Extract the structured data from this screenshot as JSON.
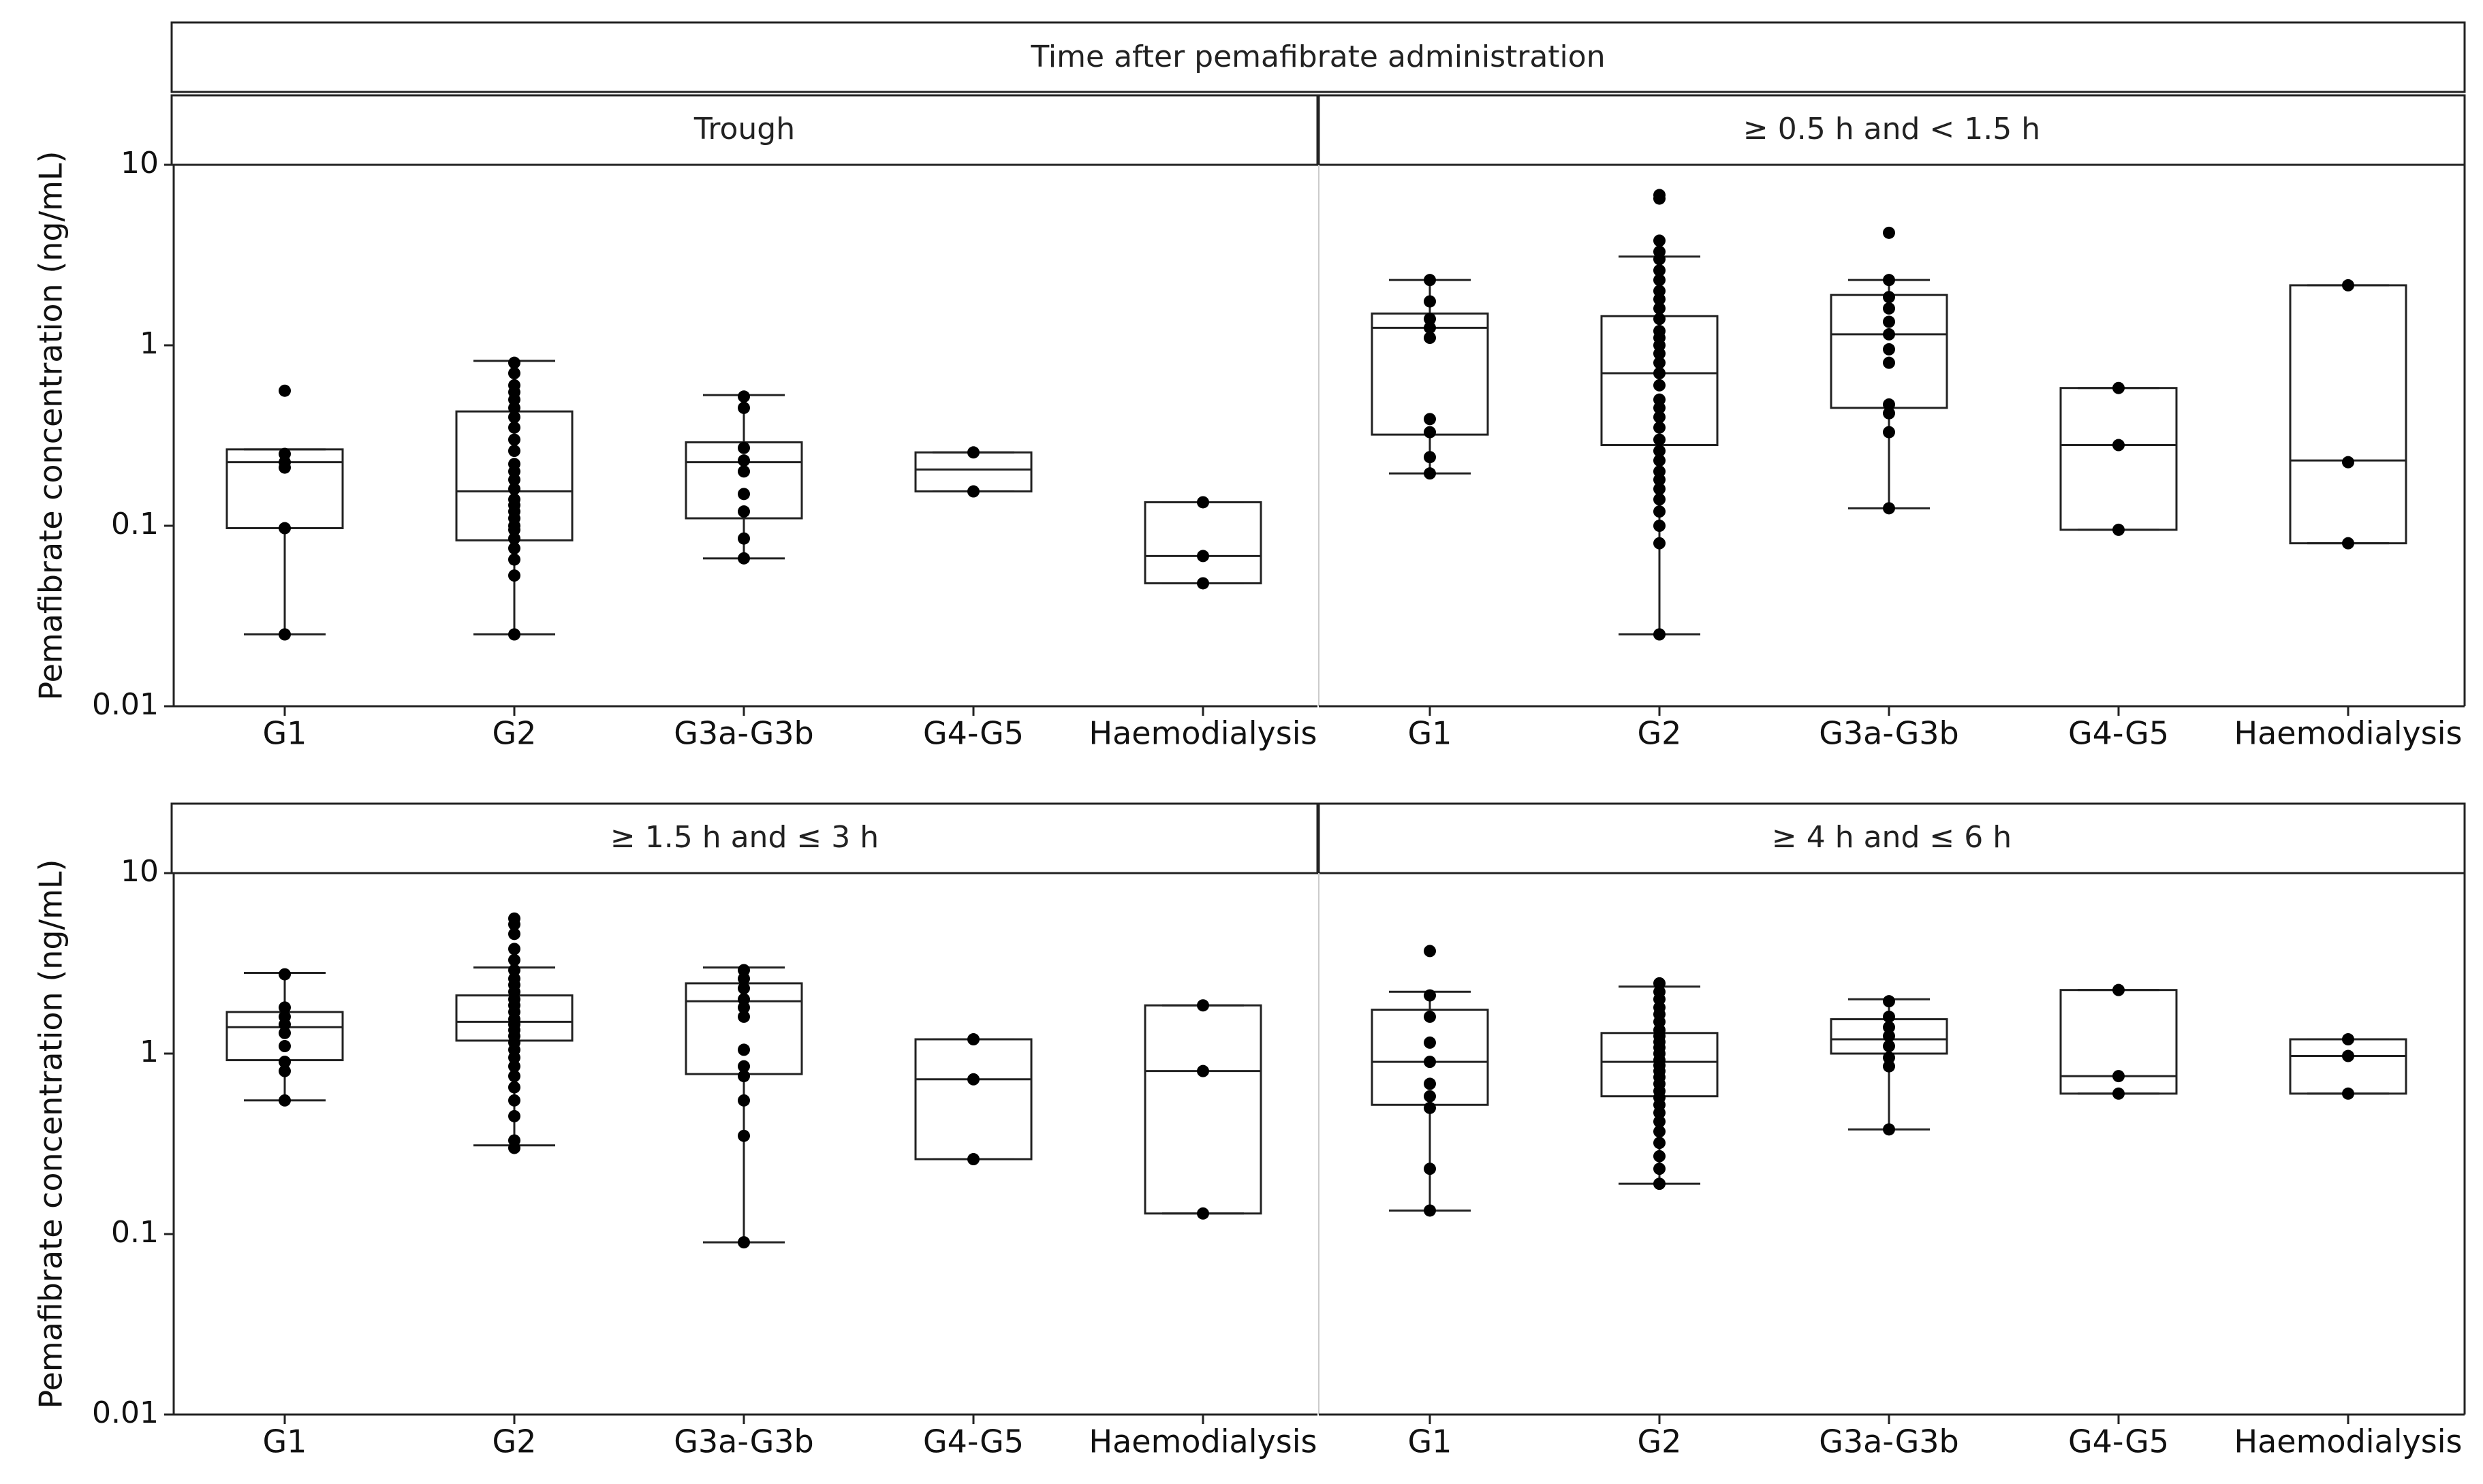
{
  "chart_data": {
    "type": "boxplot",
    "title": "Time after pemafibrate administration",
    "ylabel": "Pemafibrate concentration (ng/mL)",
    "yscale": "log",
    "ylim": [
      0.01,
      10
    ],
    "yticks": [
      {
        "value": 10,
        "label": "10"
      },
      {
        "value": 1,
        "label": "1"
      },
      {
        "value": 0.1,
        "label": "0.1"
      },
      {
        "value": 0.01,
        "label": "0.01"
      }
    ],
    "categories": [
      "G1",
      "G2",
      "G3a-G3b",
      "G4-G5",
      "Haemodialysis"
    ],
    "panels": [
      {
        "label": "Trough",
        "groups": [
          {
            "category": "G1",
            "whisker_low": 0.025,
            "q1": 0.097,
            "median": 0.225,
            "q3": 0.265,
            "whisker_high": 0.265,
            "points": [
              0.025,
              0.097,
              0.21,
              0.225,
              0.25,
              0.56
            ]
          },
          {
            "category": "G2",
            "whisker_low": 0.025,
            "q1": 0.083,
            "median": 0.155,
            "q3": 0.43,
            "whisker_high": 0.82,
            "points": [
              0.025,
              0.053,
              0.065,
              0.075,
              0.085,
              0.095,
              0.1,
              0.11,
              0.12,
              0.13,
              0.14,
              0.16,
              0.18,
              0.2,
              0.22,
              0.26,
              0.3,
              0.35,
              0.4,
              0.45,
              0.5,
              0.55,
              0.6,
              0.7,
              0.8
            ]
          },
          {
            "category": "G3a-G3b",
            "whisker_low": 0.066,
            "q1": 0.11,
            "median": 0.225,
            "q3": 0.29,
            "whisker_high": 0.53,
            "points": [
              0.066,
              0.085,
              0.12,
              0.15,
              0.2,
              0.23,
              0.27,
              0.45,
              0.52
            ]
          },
          {
            "category": "G4-G5",
            "whisker_low": 0.155,
            "q1": 0.155,
            "median": 0.205,
            "q3": 0.255,
            "whisker_high": 0.255,
            "points": [
              0.155,
              0.255
            ]
          },
          {
            "category": "Haemodialysis",
            "whisker_low": 0.048,
            "q1": 0.048,
            "median": 0.068,
            "q3": 0.135,
            "whisker_high": 0.135,
            "points": [
              0.048,
              0.068,
              0.135
            ]
          }
        ]
      },
      {
        "label": "≥ 0.5 h and < 1.5 h",
        "groups": [
          {
            "category": "G1",
            "whisker_low": 0.195,
            "q1": 0.32,
            "median": 1.25,
            "q3": 1.5,
            "whisker_high": 2.3,
            "points": [
              0.195,
              0.24,
              0.33,
              0.39,
              1.1,
              1.25,
              1.4,
              1.75,
              2.3
            ]
          },
          {
            "category": "G2",
            "whisker_low": 0.025,
            "q1": 0.28,
            "median": 0.7,
            "q3": 1.45,
            "whisker_high": 3.1,
            "points": [
              0.025,
              0.08,
              0.1,
              0.12,
              0.14,
              0.16,
              0.18,
              0.2,
              0.23,
              0.26,
              0.3,
              0.35,
              0.4,
              0.45,
              0.5,
              0.6,
              0.7,
              0.8,
              0.9,
              1.0,
              1.1,
              1.2,
              1.4,
              1.6,
              1.8,
              2.0,
              2.3,
              2.6,
              3.0,
              3.3,
              3.8,
              6.5,
              6.8
            ]
          },
          {
            "category": "G3a-G3b",
            "whisker_low": 0.125,
            "q1": 0.45,
            "median": 1.15,
            "q3": 1.9,
            "whisker_high": 2.3,
            "points": [
              0.125,
              0.33,
              0.42,
              0.47,
              0.8,
              0.95,
              1.15,
              1.35,
              1.6,
              1.85,
              2.3,
              4.2
            ]
          },
          {
            "category": "G4-G5",
            "whisker_low": 0.095,
            "q1": 0.095,
            "median": 0.28,
            "q3": 0.58,
            "whisker_high": 0.58,
            "points": [
              0.095,
              0.28,
              0.58
            ]
          },
          {
            "category": "Haemodialysis",
            "whisker_low": 0.08,
            "q1": 0.08,
            "median": 0.23,
            "q3": 2.15,
            "whisker_high": 2.15,
            "points": [
              0.08,
              0.225,
              2.15
            ]
          }
        ]
      },
      {
        "label": "≥ 1.5 h and ≤ 3 h",
        "groups": [
          {
            "category": "G1",
            "whisker_low": 0.55,
            "q1": 0.92,
            "median": 1.4,
            "q3": 1.7,
            "whisker_high": 2.8,
            "points": [
              0.55,
              0.8,
              0.9,
              1.1,
              1.3,
              1.45,
              1.6,
              1.8,
              2.75
            ]
          },
          {
            "category": "G2",
            "whisker_low": 0.31,
            "q1": 1.18,
            "median": 1.5,
            "q3": 2.1,
            "whisker_high": 3.0,
            "points": [
              0.3,
              0.33,
              0.45,
              0.55,
              0.65,
              0.75,
              0.85,
              0.95,
              1.05,
              1.15,
              1.25,
              1.35,
              1.45,
              1.55,
              1.7,
              1.85,
              2.0,
              2.2,
              2.4,
              2.6,
              2.9,
              3.3,
              3.8,
              4.6,
              5.2,
              5.6
            ]
          },
          {
            "category": "G3a-G3b",
            "whisker_low": 0.09,
            "q1": 0.77,
            "median": 1.95,
            "q3": 2.45,
            "whisker_high": 3.0,
            "points": [
              0.09,
              0.35,
              0.55,
              0.75,
              0.85,
              1.05,
              1.6,
              1.8,
              2.0,
              2.3,
              2.6,
              2.9
            ]
          },
          {
            "category": "G4-G5",
            "whisker_low": 0.26,
            "q1": 0.26,
            "median": 0.72,
            "q3": 1.2,
            "whisker_high": 1.2,
            "points": [
              0.26,
              0.72,
              1.2
            ]
          },
          {
            "category": "Haemodialysis",
            "whisker_low": 0.13,
            "q1": 0.13,
            "median": 0.8,
            "q3": 1.85,
            "whisker_high": 1.85,
            "points": [
              0.13,
              0.8,
              1.85
            ]
          }
        ]
      },
      {
        "label": "≥ 4 h and ≤ 6 h",
        "groups": [
          {
            "category": "G1",
            "whisker_low": 0.135,
            "q1": 0.52,
            "median": 0.9,
            "q3": 1.75,
            "whisker_high": 2.2,
            "points": [
              0.135,
              0.23,
              0.5,
              0.58,
              0.68,
              0.9,
              1.15,
              1.6,
              2.1,
              3.7
            ]
          },
          {
            "category": "G2",
            "whisker_low": 0.19,
            "q1": 0.58,
            "median": 0.9,
            "q3": 1.3,
            "whisker_high": 2.35,
            "points": [
              0.19,
              0.23,
              0.27,
              0.32,
              0.37,
              0.42,
              0.47,
              0.52,
              0.57,
              0.62,
              0.68,
              0.74,
              0.8,
              0.86,
              0.92,
              1.0,
              1.08,
              1.16,
              1.25,
              1.35,
              1.5,
              1.65,
              1.8,
              2.0,
              2.2,
              2.45
            ]
          },
          {
            "category": "G3a-G3b",
            "whisker_low": 0.38,
            "q1": 1.0,
            "median": 1.2,
            "q3": 1.55,
            "whisker_high": 2.0,
            "points": [
              0.38,
              0.85,
              0.95,
              1.1,
              1.25,
              1.4,
              1.6,
              1.95
            ]
          },
          {
            "category": "G4-G5",
            "whisker_low": 0.6,
            "q1": 0.6,
            "median": 0.75,
            "q3": 2.25,
            "whisker_high": 2.25,
            "points": [
              0.6,
              0.75,
              2.25
            ]
          },
          {
            "category": "Haemodialysis",
            "whisker_low": 0.6,
            "q1": 0.6,
            "median": 0.97,
            "q3": 1.2,
            "whisker_high": 1.2,
            "points": [
              0.6,
              0.97,
              1.2
            ]
          }
        ]
      }
    ]
  }
}
